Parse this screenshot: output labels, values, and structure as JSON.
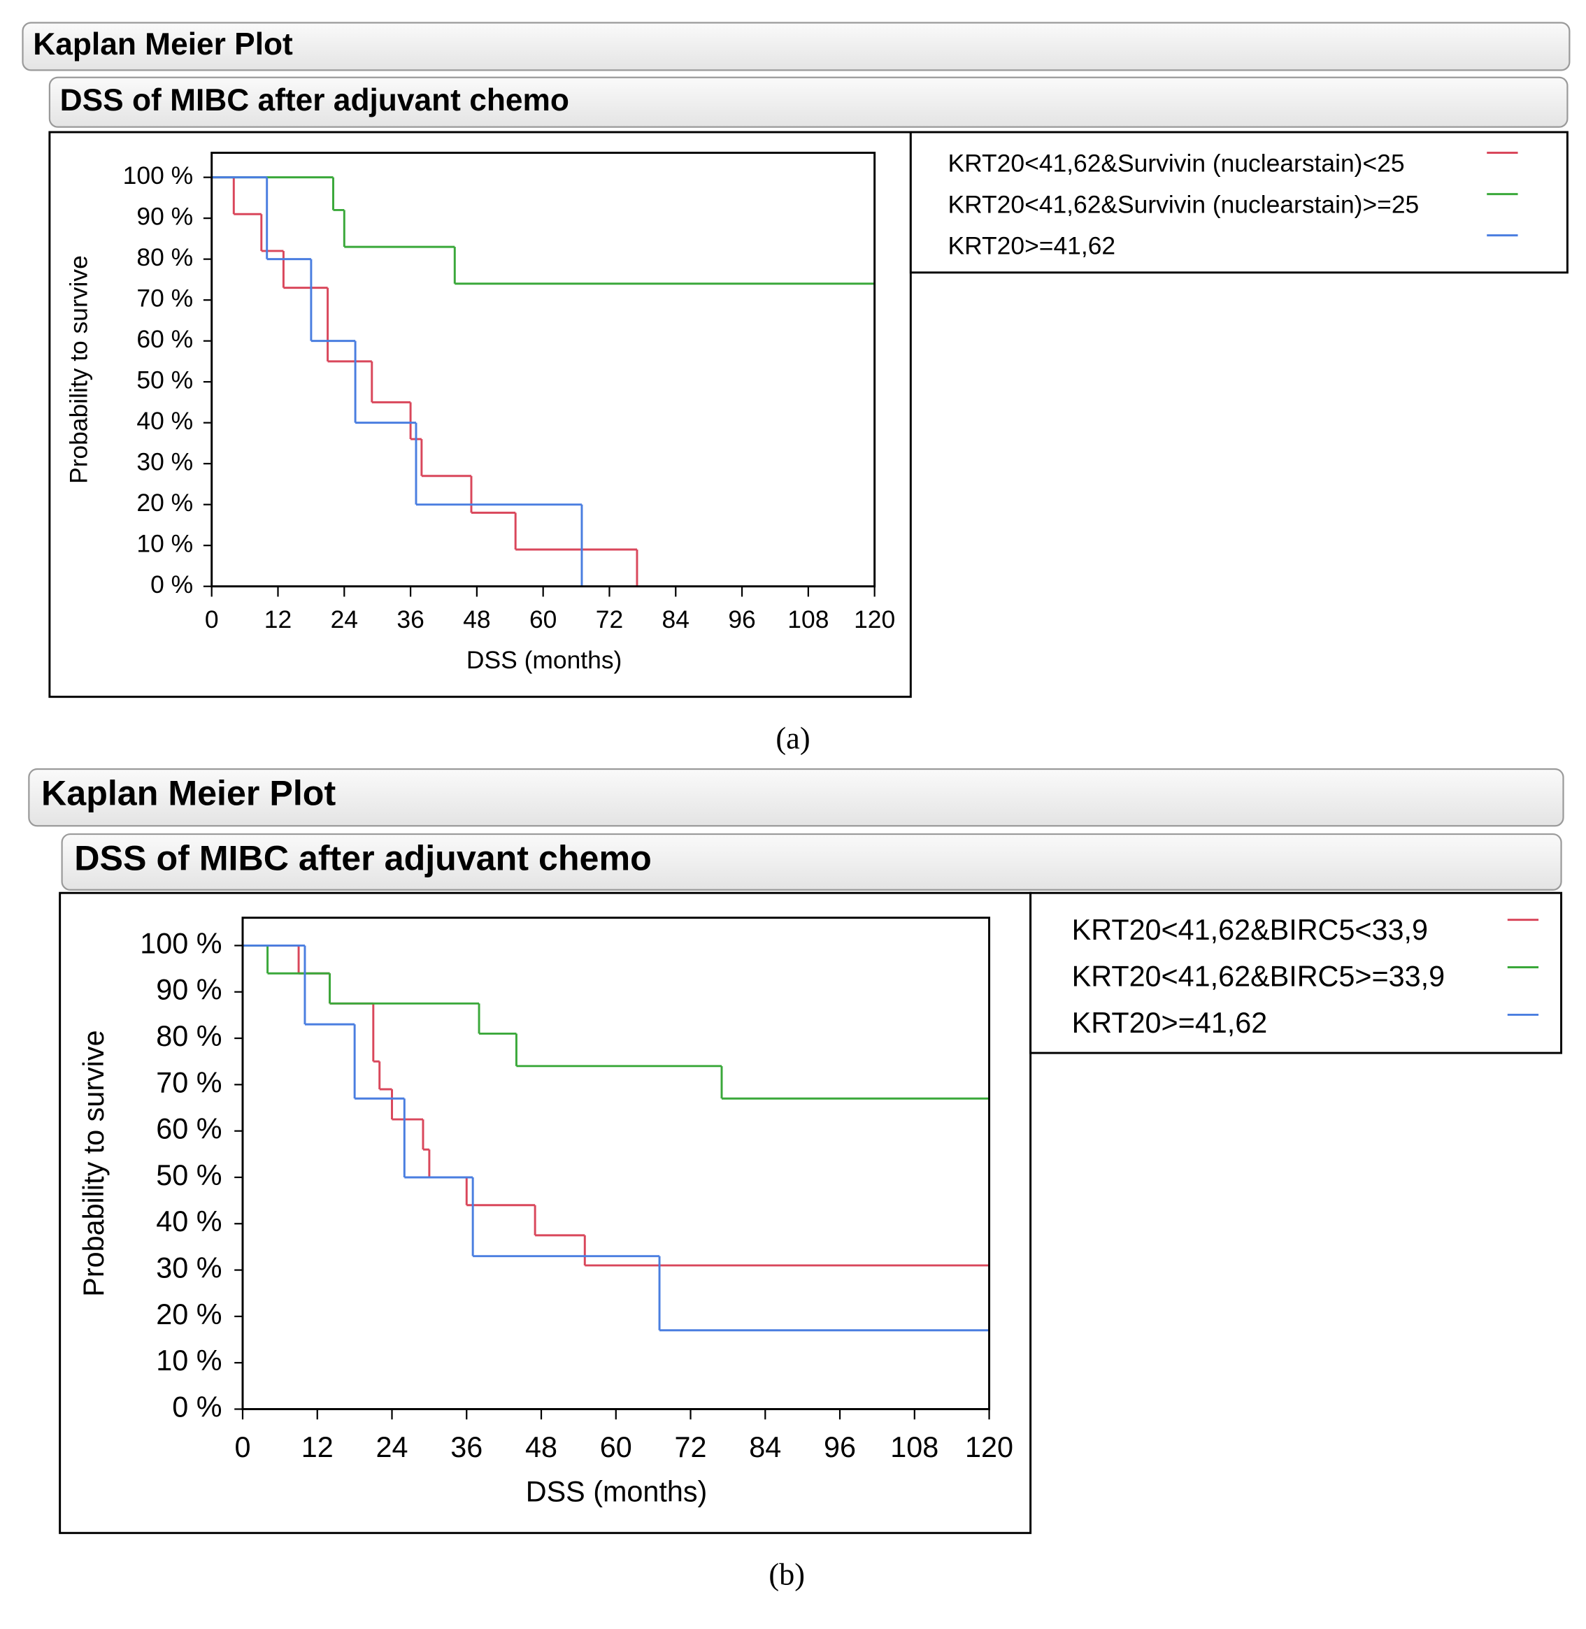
{
  "chart_data": [
    {
      "type": "step",
      "title": "Kaplan Meier Plot",
      "subtitle": "DSS of MIBC after adjuvant chemo",
      "caption": "(a)",
      "xlabel": "DSS (months)",
      "ylabel": "Probability to survive",
      "xlim": [
        0,
        120
      ],
      "xticks": [
        0,
        12,
        24,
        36,
        48,
        60,
        72,
        84,
        96,
        108,
        120
      ],
      "ylim": [
        0,
        106
      ],
      "yticks": [
        {
          "value": 0,
          "label": "0 %"
        },
        {
          "value": 10,
          "label": "10 %"
        },
        {
          "value": 20,
          "label": "20 %"
        },
        {
          "value": 30,
          "label": "30 %"
        },
        {
          "value": 40,
          "label": "40 %"
        },
        {
          "value": 50,
          "label": "50 %"
        },
        {
          "value": 60,
          "label": "60 %"
        },
        {
          "value": 70,
          "label": "70 %"
        },
        {
          "value": 80,
          "label": "80 %"
        },
        {
          "value": 90,
          "label": "90 %"
        },
        {
          "value": 100,
          "label": "100 %"
        }
      ],
      "series": [
        {
          "name": "KRT20<41,62&Survivin (nuclearstain)<25",
          "color": "#d9475b",
          "x": [
            0,
            4,
            9,
            13,
            21,
            29,
            36,
            38,
            47,
            55,
            77
          ],
          "values": [
            100,
            91,
            82,
            73,
            55,
            45,
            36,
            27,
            18,
            9,
            0
          ]
        },
        {
          "name": "KRT20<41,62&Survivin (nuclearstain)>=25",
          "color": "#3aa83a",
          "x": [
            0,
            22,
            24,
            44,
            120
          ],
          "values": [
            100,
            92,
            83,
            74,
            74
          ]
        },
        {
          "name": "KRT20>=41,62",
          "color": "#4a7ee0",
          "x": [
            0,
            10,
            18,
            26,
            37,
            67
          ],
          "values": [
            100,
            80,
            60,
            40,
            20,
            0
          ]
        }
      ]
    },
    {
      "type": "step",
      "title": "Kaplan Meier Plot",
      "subtitle": "DSS of MIBC after adjuvant chemo",
      "caption": "(b)",
      "xlabel": "DSS (months)",
      "ylabel": "Probability to survive",
      "xlim": [
        0,
        120
      ],
      "xticks": [
        0,
        12,
        24,
        36,
        48,
        60,
        72,
        84,
        96,
        108,
        120
      ],
      "ylim": [
        0,
        106
      ],
      "yticks": [
        {
          "value": 0,
          "label": "0 %"
        },
        {
          "value": 10,
          "label": "10 %"
        },
        {
          "value": 20,
          "label": "20 %"
        },
        {
          "value": 30,
          "label": "30 %"
        },
        {
          "value": 40,
          "label": "40 %"
        },
        {
          "value": 50,
          "label": "50 %"
        },
        {
          "value": 60,
          "label": "60 %"
        },
        {
          "value": 70,
          "label": "70 %"
        },
        {
          "value": 80,
          "label": "80 %"
        },
        {
          "value": 90,
          "label": "90 %"
        },
        {
          "value": 100,
          "label": "100 %"
        }
      ],
      "series": [
        {
          "name": "KRT20<41,62&BIRC5<33,9",
          "color": "#d9475b",
          "x": [
            0,
            9,
            14,
            21,
            22,
            24,
            29,
            30,
            36,
            47,
            55,
            120
          ],
          "values": [
            100,
            94,
            87.5,
            75,
            69,
            62.5,
            56,
            50,
            44,
            37.5,
            31,
            31
          ]
        },
        {
          "name": "KRT20<41,62&BIRC5>=33,9",
          "color": "#3aa83a",
          "x": [
            0,
            4,
            14,
            38,
            44,
            77,
            120
          ],
          "values": [
            100,
            94,
            87.5,
            81,
            74,
            67,
            67
          ]
        },
        {
          "name": "KRT20>=41,62",
          "color": "#4a7ee0",
          "x": [
            0,
            10,
            18,
            26,
            37,
            67,
            120
          ],
          "values": [
            100,
            83,
            67,
            50,
            33,
            17,
            17
          ]
        }
      ]
    }
  ]
}
